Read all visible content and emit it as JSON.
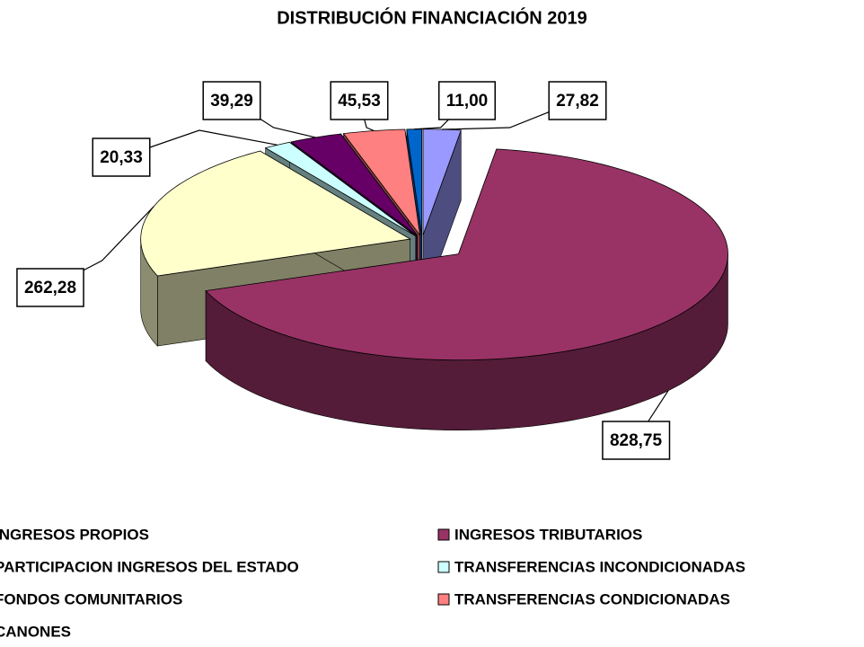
{
  "chart_data": {
    "type": "pie",
    "title": "DISTRIBUCIÓN FINANCIACIÓN 2019",
    "categories": [
      "INGRESOS PROPIOS",
      "INGRESOS TRIBUTARIOS",
      "PARTICIPACION INGRESOS DEL ESTADO",
      "TRANSFERENCIAS INCONDICIONADAS",
      "FONDOS COMUNITARIOS",
      "TRANSFERENCIAS CONDICIONADAS",
      "CANONES"
    ],
    "values": [
      27.82,
      828.75,
      262.28,
      20.33,
      39.29,
      45.53,
      11.0
    ],
    "value_labels": [
      "27,82",
      "828,75",
      "262,28",
      "20,33",
      "39,29",
      "45,53",
      "11,00"
    ],
    "colors": [
      "#9999FF",
      "#993366",
      "#FFFFCC",
      "#CCFFFF",
      "#660066",
      "#FF8080",
      "#0066CC"
    ]
  }
}
